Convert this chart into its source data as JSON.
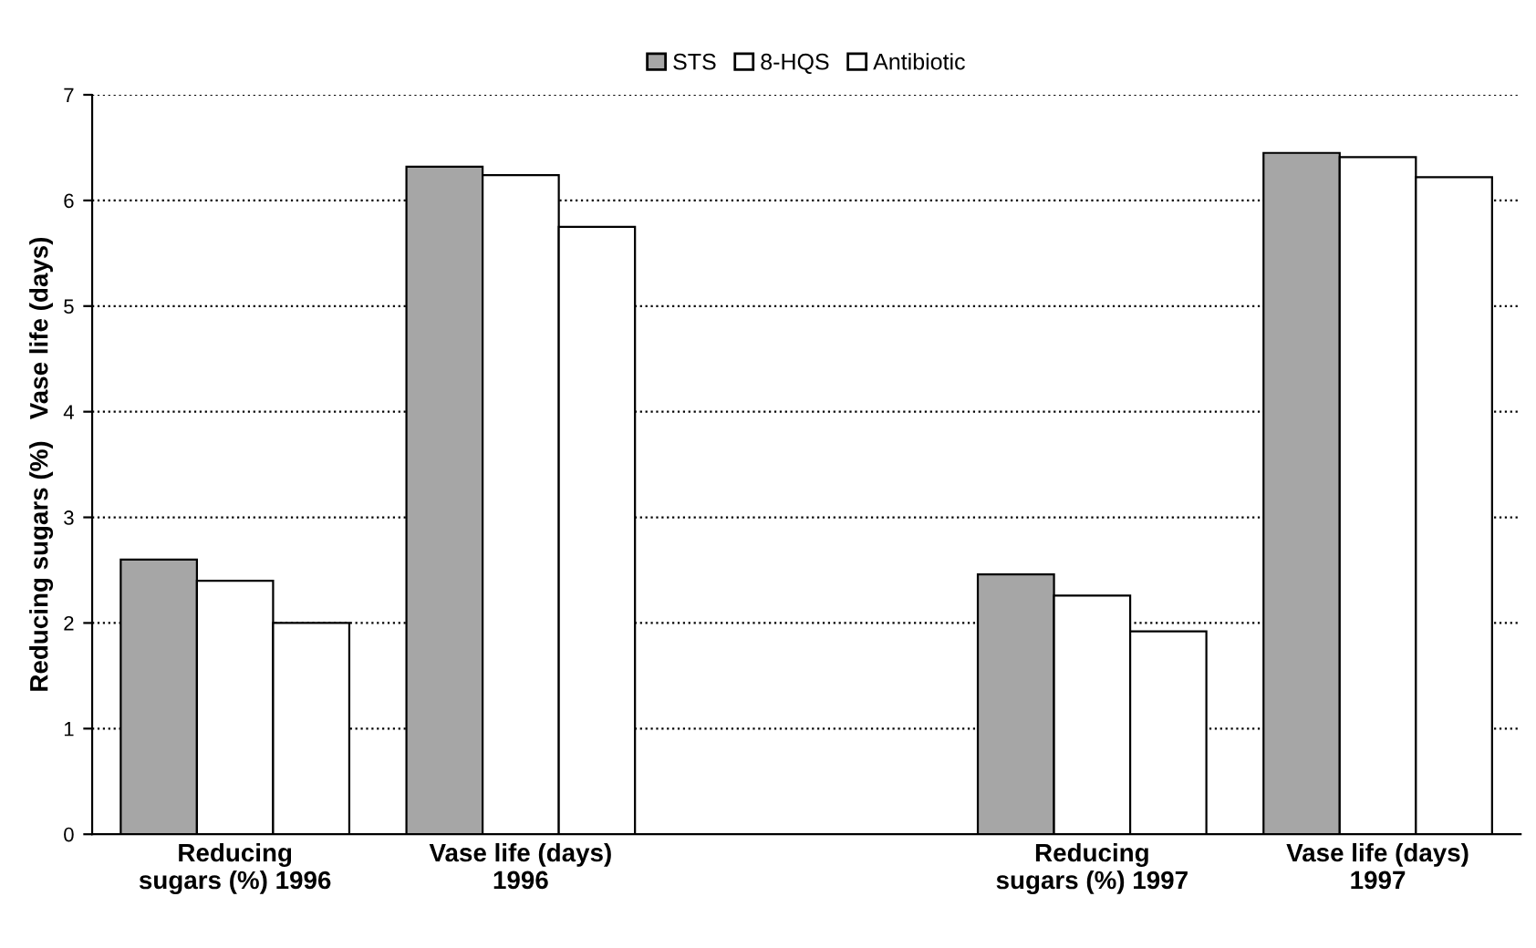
{
  "chart_data": {
    "type": "bar",
    "ylabel": "Reducing sugars (%)   Vase life (days)",
    "categories": [
      "Reducing\nsugars (%) 1996",
      "Vase life (days)\n1996",
      null,
      "Reducing\nsugars (%) 1997",
      "Vase life (days)\n1997"
    ],
    "series": [
      {
        "name": "STS",
        "color": "#a6a6a6",
        "values": [
          2.6,
          6.32,
          null,
          2.46,
          6.45
        ]
      },
      {
        "name": "8-HQS",
        "color": "#ffffff",
        "values": [
          2.4,
          6.24,
          null,
          2.26,
          6.41
        ]
      },
      {
        "name": "Antibiotic",
        "color": "#ffffff",
        "values": [
          2.0,
          5.75,
          null,
          1.92,
          6.22
        ]
      }
    ],
    "ylim": [
      0,
      7
    ],
    "yticks": [
      0,
      1,
      2,
      3,
      4,
      5,
      6,
      7
    ],
    "grid": "y",
    "legend": "top"
  }
}
